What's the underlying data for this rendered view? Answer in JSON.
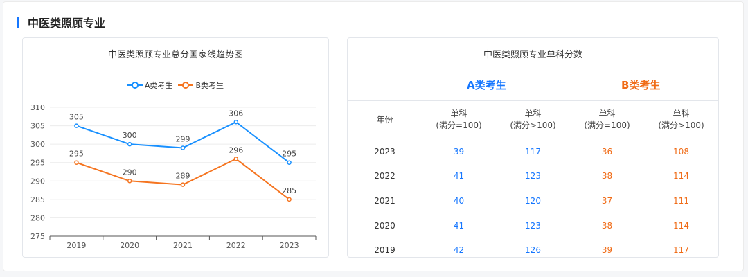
{
  "section_title": "中医类照顾专业",
  "left_card": {
    "title": "中医类照顾专业总分国家线趋势图"
  },
  "right_card": {
    "title": "中医类照顾专业单科分数",
    "group_a": "A类考生",
    "group_b": "B类考生",
    "headers": [
      {
        "l1": "年份",
        "l2": ""
      },
      {
        "l1": "单科",
        "l2": "(满分=100)"
      },
      {
        "l1": "单科",
        "l2": "(满分>100)"
      },
      {
        "l1": "单科",
        "l2": "(满分=100)"
      },
      {
        "l1": "单科",
        "l2": "(满分>100)"
      }
    ],
    "rows": [
      {
        "year": "2023",
        "a100": "39",
        "a_gt": "117",
        "b100": "36",
        "b_gt": "108"
      },
      {
        "year": "2022",
        "a100": "41",
        "a_gt": "123",
        "b100": "38",
        "b_gt": "114"
      },
      {
        "year": "2021",
        "a100": "40",
        "a_gt": "120",
        "b100": "37",
        "b_gt": "111"
      },
      {
        "year": "2020",
        "a100": "41",
        "a_gt": "123",
        "b100": "38",
        "b_gt": "114"
      },
      {
        "year": "2019",
        "a100": "42",
        "a_gt": "126",
        "b100": "39",
        "b_gt": "117"
      }
    ]
  },
  "colors": {
    "accent": "#1677ff",
    "series_a": "#1890ff",
    "series_b": "#f5741f"
  },
  "chart_data": {
    "type": "line",
    "x": [
      "2019",
      "2020",
      "2021",
      "2022",
      "2023"
    ],
    "series": [
      {
        "name": "A类考生",
        "values": [
          305,
          300,
          299,
          306,
          295
        ]
      },
      {
        "name": "B类考生",
        "values": [
          295,
          290,
          289,
          296,
          285
        ]
      }
    ],
    "ylim": [
      275,
      310
    ],
    "yticks": [
      275,
      280,
      285,
      290,
      295,
      300,
      305,
      310
    ],
    "legend": "top-center",
    "grid": true
  }
}
